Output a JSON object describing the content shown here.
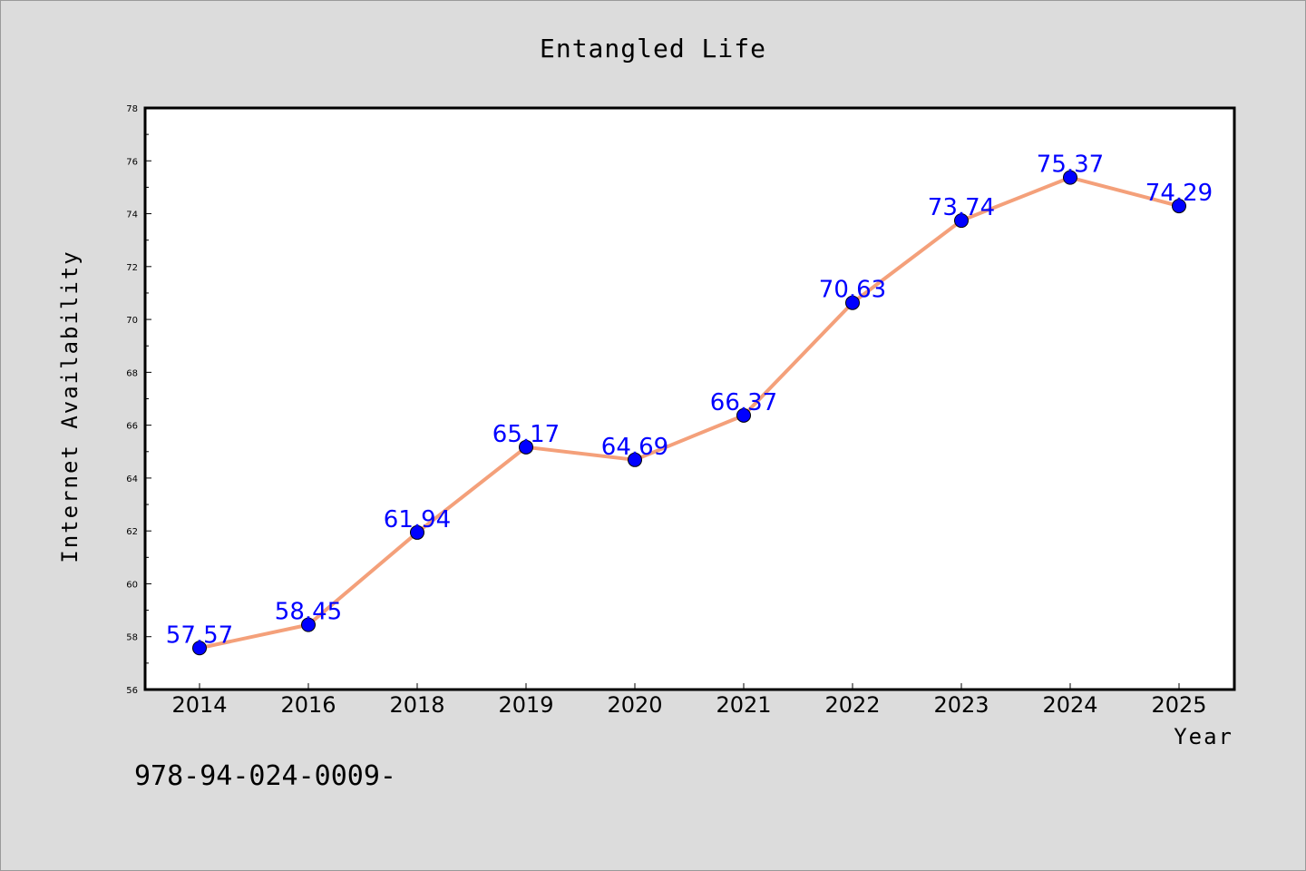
{
  "chart_data": {
    "type": "line",
    "title": "Entangled Life",
    "xlabel": "Year",
    "ylabel": "Internet Availability",
    "categories": [
      "2014",
      "2016",
      "2018",
      "2019",
      "2020",
      "2021",
      "2022",
      "2023",
      "2024",
      "2025"
    ],
    "series": [
      {
        "values": [
          57.57,
          58.45,
          61.94,
          65.17,
          64.69,
          66.37,
          70.63,
          73.74,
          75.37,
          74.29
        ],
        "labels": [
          "57.57",
          "58.45",
          "61.94",
          "65.17",
          "64.69",
          "66.37",
          "70.63",
          "73.74",
          "75.37",
          "74.29"
        ],
        "line_color": "#f4a07a",
        "marker_color": "#0000ff"
      }
    ],
    "ylim": [
      56,
      78
    ],
    "yticks": [
      "56",
      "58",
      "60",
      "62",
      "64",
      "66",
      "68",
      "70",
      "72",
      "74",
      "76",
      "78"
    ],
    "grid": false,
    "legend": "none"
  },
  "footer": {
    "text": "978-94-024-0009-"
  },
  "colors": {
    "background": "#dcdcdc",
    "plot_background": "#ffffff"
  }
}
